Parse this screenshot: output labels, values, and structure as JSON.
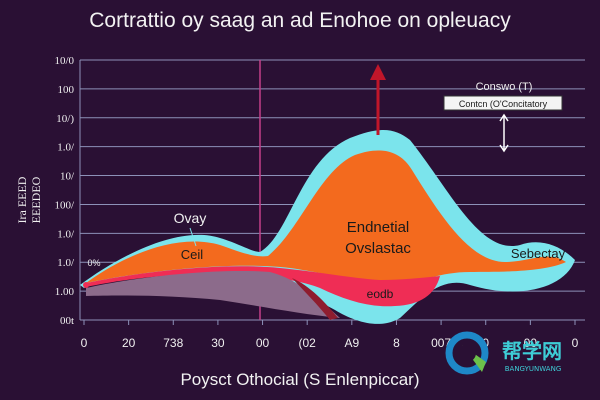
{
  "chart_data": {
    "type": "area",
    "title": "Cortrattio oy saag an ad Enohoe on opleuacy",
    "xlabel": "Poysct Othocial (S Enlenpiccar)",
    "ylabel": "Ira EEEDEO",
    "ylabel_lines": [
      "Ira EEED",
      "EEEDEO"
    ],
    "ytick_labels": [
      "00t",
      "1.00",
      "1.0/",
      "1.0/",
      "100/",
      "10/",
      "1.0/",
      "10/)",
      "100",
      "10/0"
    ],
    "xtick_labels": [
      "0",
      "20",
      "738",
      "30",
      "00",
      "(02",
      "A9",
      "8",
      "007",
      "0",
      "00",
      "0"
    ],
    "x": [
      0,
      20,
      40,
      60,
      80,
      100,
      120,
      140,
      160,
      180,
      200,
      220
    ],
    "xlim": [
      0,
      220
    ],
    "ylim": [
      0,
      10
    ],
    "grid": true,
    "series": [
      {
        "name": "Ovay",
        "color": "#f36a1e",
        "outline": "#7be4ec",
        "values": [
          0.1,
          0.9,
          1.7,
          1.8,
          1.2,
          2.4,
          4.8,
          6.2,
          5.0,
          2.2,
          1.4,
          1.2
        ]
      },
      {
        "name": "",
        "color": "#ef2d55",
        "values": [
          0.5,
          0.8,
          1.1,
          1.3,
          1.1,
          0.9,
          0.2,
          0.5,
          1.1,
          0.5,
          0,
          0
        ]
      },
      {
        "name": "",
        "color": "#8c6b8b",
        "values": [
          -0.2,
          -0.1,
          0,
          0,
          0.2,
          0.5,
          0.6,
          0,
          0,
          0,
          0,
          0
        ]
      }
    ],
    "annotations": {
      "ovay": "Ovay",
      "cell": "Ceil",
      "endnetial": "Endnetial",
      "ovslastac": "Ovslastac",
      "sebectay": "Sebectay",
      "eodb": "eodb",
      "mark": "0%",
      "legend_title": "Conswo (T)",
      "legend_box": "Contcn (O'Concitatory"
    },
    "colors": {
      "background": "#2a1034",
      "grid": "#8d91b8",
      "teal_outline": "#7be4ec",
      "orange": "#f36a1e",
      "pink": "#ef2d55",
      "arrow": "#c0162a",
      "vline": "#c33f8a"
    }
  },
  "watermark": {
    "text": "帮学网",
    "sub": "BANGYUNWANG",
    "icon": "q-logo-icon"
  }
}
